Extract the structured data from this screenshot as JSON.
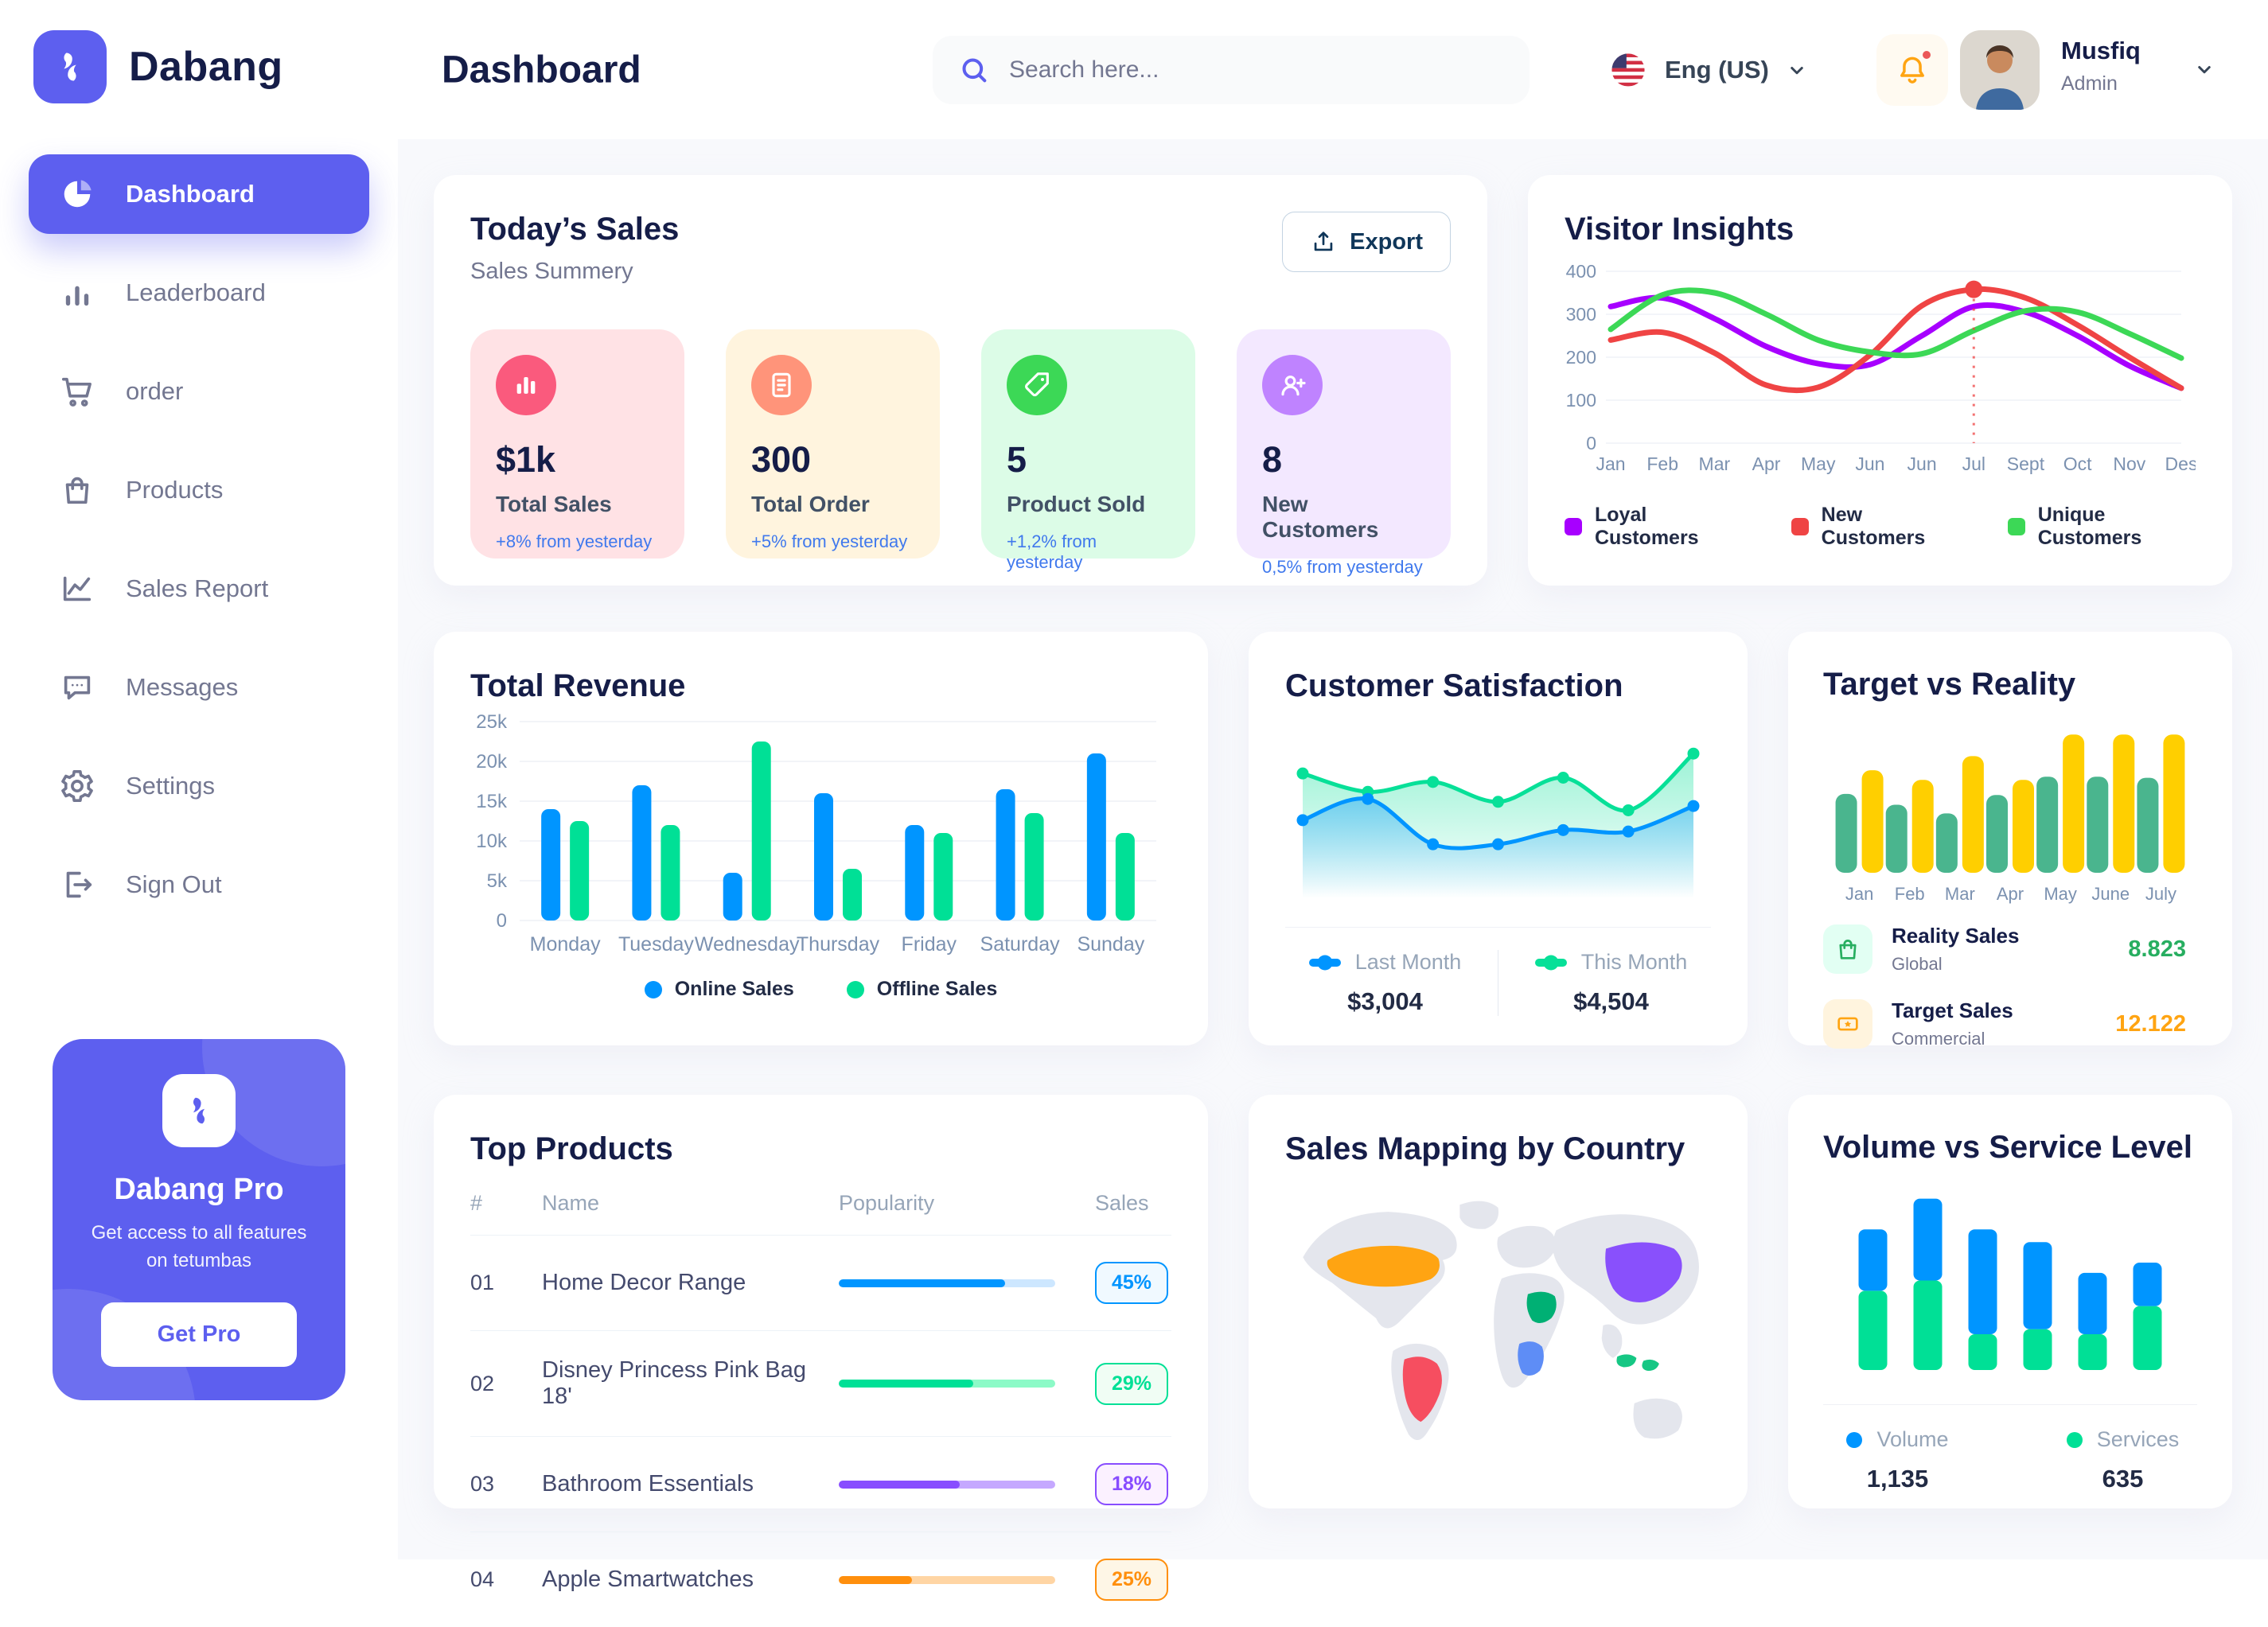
{
  "app": {
    "brand": "Dabang",
    "accent_color": "#5D5FEF"
  },
  "header": {
    "page_title": "Dashboard",
    "search_placeholder": "Search here...",
    "language": "Eng (US)",
    "user_name": "Musfiq",
    "user_role": "Admin"
  },
  "sidebar": {
    "items": [
      {
        "label": "Dashboard",
        "icon": "pie-chart-icon",
        "active": true
      },
      {
        "label": "Leaderboard",
        "icon": "bar-chart-icon",
        "active": false
      },
      {
        "label": "order",
        "icon": "cart-icon",
        "active": false
      },
      {
        "label": "Products",
        "icon": "bag-icon",
        "active": false
      },
      {
        "label": "Sales Report",
        "icon": "line-chart-icon",
        "active": false
      },
      {
        "label": "Messages",
        "icon": "message-icon",
        "active": false
      },
      {
        "label": "Settings",
        "icon": "gear-icon",
        "active": false
      },
      {
        "label": "Sign Out",
        "icon": "sign-out-icon",
        "active": false
      }
    ],
    "pro_card": {
      "title": "Dabang Pro",
      "subtitle": "Get access to all features on tetumbas",
      "button_label": "Get Pro"
    }
  },
  "todays_sales": {
    "title": "Today’s Sales",
    "subtitle": "Sales Summery",
    "export_label": "Export",
    "cards": [
      {
        "value": "$1k",
        "label": "Total Sales",
        "delta": "+8% from yesterday",
        "bg": "#FFE2E5",
        "icon_bg": "#FA5A7D",
        "icon": "stats-icon"
      },
      {
        "value": "300",
        "label": "Total Order",
        "delta": "+5% from yesterday",
        "bg": "#FFF4DE",
        "icon_bg": "#FF947A",
        "icon": "order-icon"
      },
      {
        "value": "5",
        "label": "Product Sold",
        "delta": "+1,2% from yesterday",
        "bg": "#DCFCE7",
        "icon_bg": "#3CD856",
        "icon": "tag-icon"
      },
      {
        "value": "8",
        "label": "New Customers",
        "delta": "0,5% from yesterday",
        "bg": "#F3E8FF",
        "icon_bg": "#BF83FF",
        "icon": "user-plus-icon"
      }
    ]
  },
  "top_products": {
    "title": "Top Products",
    "headers": [
      "#",
      "Name",
      "Popularity",
      "Sales"
    ],
    "rows": [
      {
        "num": "01",
        "name": "Home Decor Range",
        "popularity": 77,
        "percent": "45%",
        "color": "#0095FF",
        "track": "#CDE7FF",
        "badge_bg": "#F0F9FF"
      },
      {
        "num": "02",
        "name": "Disney Princess Pink Bag 18'",
        "popularity": 62,
        "percent": "29%",
        "color": "#00E096",
        "track": "#8CFAC7",
        "badge_bg": "#F0FDF4"
      },
      {
        "num": "03",
        "name": "Bathroom Essentials",
        "popularity": 56,
        "percent": "18%",
        "color": "#884DFF",
        "track": "#C5A8FF",
        "badge_bg": "#FBF1FF"
      },
      {
        "num": "04",
        "name": "Apple Smartwatches",
        "popularity": 34,
        "percent": "25%",
        "color": "#FF8F0D",
        "track": "#FFD5A4",
        "badge_bg": "#FEF6E6"
      }
    ]
  },
  "map": {
    "title": "Sales Mapping by Country",
    "base_color": "#E4E6ED",
    "highlights": [
      {
        "country": "united-states",
        "color": "#FFA412"
      },
      {
        "country": "brazil",
        "color": "#F64E60"
      },
      {
        "country": "saudi-arabia",
        "color": "#00B074"
      },
      {
        "country": "congo",
        "color": "#5E8DF6"
      },
      {
        "country": "china",
        "color": "#8950FC"
      },
      {
        "country": "indonesia",
        "color": "#16C784"
      }
    ]
  },
  "chart_data": [
    {
      "id": "visitor_insights",
      "type": "line",
      "title": "Visitor Insights",
      "x": [
        "Jan",
        "Feb",
        "Mar",
        "Apr",
        "May",
        "Jun",
        "Jun",
        "Jul",
        "Sept",
        "Oct",
        "Nov",
        "Des"
      ],
      "ylim": [
        0,
        400
      ],
      "yticks": [
        0,
        100,
        200,
        300,
        400
      ],
      "grid": true,
      "legend_position": "bottom",
      "marker": {
        "series_index": 1,
        "x_index": 7
      },
      "series": [
        {
          "name": "Loyal Customers",
          "color": "#A700FF",
          "values": [
            318,
            338,
            290,
            225,
            185,
            183,
            250,
            318,
            305,
            250,
            180,
            128
          ]
        },
        {
          "name": "New Customers",
          "color": "#EF4444",
          "values": [
            240,
            258,
            210,
            135,
            130,
            205,
            320,
            358,
            338,
            275,
            200,
            128
          ]
        },
        {
          "name": "Unique Customers",
          "color": "#3CD856",
          "values": [
            265,
            345,
            350,
            300,
            240,
            212,
            208,
            262,
            308,
            305,
            255,
            198
          ]
        }
      ]
    },
    {
      "id": "total_revenue",
      "type": "bar",
      "title": "Total Revenue",
      "categories": [
        "Monday",
        "Tuesday",
        "Wednesday",
        "Thursday",
        "Friday",
        "Saturday",
        "Sunday"
      ],
      "ylim": [
        0,
        25000
      ],
      "yticks": [
        0,
        5000,
        10000,
        15000,
        20000,
        25000
      ],
      "ytick_labels": [
        "0",
        "5k",
        "10k",
        "15k",
        "20k",
        "25k"
      ],
      "grid": true,
      "legend_position": "bottom",
      "series": [
        {
          "name": "Online Sales",
          "color": "#0095FF",
          "values": [
            14000,
            17000,
            6000,
            16000,
            12000,
            16500,
            21000
          ]
        },
        {
          "name": "Offline Sales",
          "color": "#00E096",
          "values": [
            12500,
            12000,
            22500,
            6500,
            11000,
            13500,
            11000
          ]
        }
      ]
    },
    {
      "id": "customer_satisfaction",
      "type": "area",
      "title": "Customer Satisfaction",
      "ylim": [
        0,
        100
      ],
      "legend_position": "bottom",
      "series": [
        {
          "name": "Last Month",
          "color": "#0095FF",
          "total": "$3,004",
          "values": [
            45,
            60,
            28,
            28,
            38,
            37,
            55
          ]
        },
        {
          "name": "This Month",
          "color": "#07E098",
          "total": "$4,504",
          "values": [
            78,
            65,
            72,
            58,
            75,
            52,
            92
          ]
        }
      ]
    },
    {
      "id": "target_vs_reality",
      "type": "bar",
      "title": "Target vs Reality",
      "categories": [
        "Jan",
        "Feb",
        "Mar",
        "Apr",
        "May",
        "June",
        "July"
      ],
      "ylim": [
        0,
        14
      ],
      "legend_position": "bottom",
      "series": [
        {
          "name": "Reality Sales",
          "subtitle": "Global",
          "color": "#4AB58E",
          "value_label": "8.823",
          "value_color": "#27AE60",
          "tile_bg": "#E2FFF3",
          "tile_icon": "shopping-bag-icon",
          "values": [
            7.3,
            6.3,
            5.5,
            7.2,
            8.9,
            8.9,
            8.8
          ]
        },
        {
          "name": "Target Sales",
          "subtitle": "Commercial",
          "color": "#FFCF00",
          "value_label": "12.122",
          "value_color": "#FFA412",
          "tile_bg": "#FFF4DE",
          "tile_icon": "ticket-icon",
          "values": [
            9.5,
            8.6,
            10.8,
            8.6,
            12.8,
            12.8,
            12.8
          ]
        }
      ]
    },
    {
      "id": "volume_service",
      "type": "stacked-bar",
      "title": "Volume vs Service Level",
      "ylim": [
        0,
        70
      ],
      "legend_position": "bottom",
      "series": [
        {
          "name": "Volume",
          "color": "#0095FF",
          "total": "1,135",
          "values": [
            24,
            32,
            41,
            34,
            24,
            17
          ]
        },
        {
          "name": "Services",
          "color": "#00E096",
          "total": "635",
          "values": [
            31,
            35,
            14,
            16,
            14,
            25
          ]
        }
      ]
    }
  ]
}
